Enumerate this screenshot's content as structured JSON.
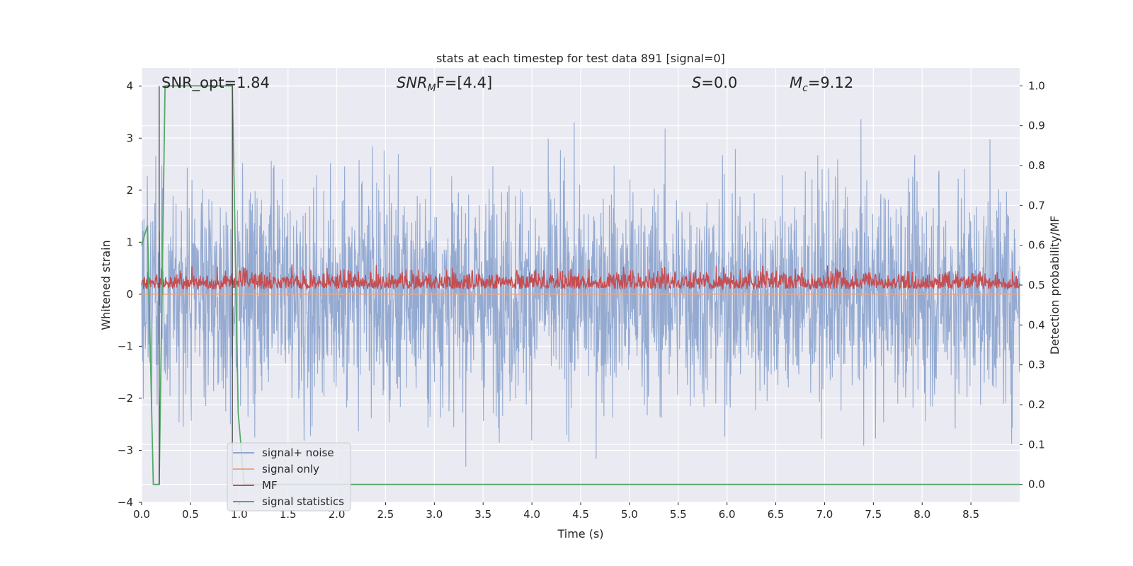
{
  "chart_data": {
    "type": "line",
    "title": "stats at each timestep for test data 891 [signal=0]",
    "xlabel": "Time (s)",
    "ylabel": "Whitened strain",
    "y2label": "Detection probability/MF",
    "xlim": [
      0.0,
      9.0
    ],
    "ylim": [
      -4.0,
      4.35
    ],
    "y2lim": [
      -0.045,
      1.045
    ],
    "x_ticks": [
      0.0,
      0.5,
      1.0,
      1.5,
      2.0,
      2.5,
      3.0,
      3.5,
      4.0,
      4.5,
      5.0,
      5.5,
      6.0,
      6.5,
      7.0,
      7.5,
      8.0,
      8.5
    ],
    "x_tick_labels": [
      "0.0",
      "0.5",
      "1.0",
      "1.5",
      "2.0",
      "2.5",
      "3.0",
      "3.5",
      "4.0",
      "4.5",
      "5.0",
      "5.5",
      "6.0",
      "6.5",
      "7.0",
      "7.5",
      "8.0",
      "8.5"
    ],
    "y_ticks": [
      4,
      3,
      2,
      1,
      0,
      -1,
      -2,
      -3,
      -4
    ],
    "y_tick_labels": [
      "4",
      "3",
      "2",
      "1",
      "0",
      "−1",
      "−2",
      "−3",
      "−4"
    ],
    "y2_ticks": [
      1.0,
      0.9,
      0.8,
      0.7,
      0.6,
      0.5,
      0.4,
      0.3,
      0.2,
      0.1,
      0.0
    ],
    "y2_tick_labels": [
      "1.0",
      "0.9",
      "0.8",
      "0.7",
      "0.6",
      "0.5",
      "0.4",
      "0.3",
      "0.2",
      "0.1",
      "0.0"
    ],
    "grid": true,
    "legend_position": "lower-left",
    "annotations": {
      "snr_opt": "SNR_opt=1.84",
      "snr_mf_sym": "SNR",
      "snr_mf_sub": "M",
      "snr_mf_rest": "F=[4.4]",
      "s_sym": "S",
      "s_rest": "=0.0",
      "mc_sym": "M",
      "mc_sub": "c",
      "mc_rest": "=9.12"
    },
    "vertical_markers": [
      0.18,
      0.93
    ],
    "series": [
      {
        "name": "signal+ noise",
        "color": "#8fa6cf",
        "axis": "left",
        "description_values": {
          "approx_min": -3.4,
          "approx_max": 4.0,
          "mean": 0.0
        }
      },
      {
        "name": "signal only",
        "color": "#e8a88a",
        "axis": "left",
        "values_constant": 0.0
      },
      {
        "name": "MF",
        "color": "#c44e52",
        "axis": "right",
        "approx_range": [
          0.49,
          0.6
        ]
      },
      {
        "name": "signal statistics",
        "color": "#55a868",
        "axis": "right",
        "x": [
          0.0,
          0.06,
          0.12,
          0.18,
          0.24,
          0.93,
          0.99,
          1.05,
          9.0
        ],
        "values": [
          0.6,
          0.65,
          0.0,
          0.0,
          1.0,
          1.0,
          0.18,
          0.0,
          0.0
        ]
      }
    ]
  }
}
